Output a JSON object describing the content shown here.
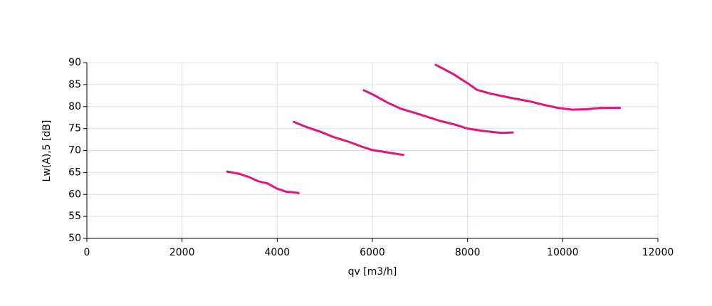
{
  "chart_data": {
    "type": "line",
    "x_label": "qv [m3/h]",
    "y_label": "Lw(A),5 [dB]",
    "xlim": [
      0,
      12000
    ],
    "xticks": [
      0,
      2000,
      4000,
      6000,
      8000,
      10000,
      12000
    ],
    "ylim": [
      50,
      90
    ],
    "yticks": [
      50,
      55,
      60,
      65,
      70,
      75,
      80,
      85,
      90
    ],
    "grid": true,
    "series": [
      {
        "color": "#e0157a",
        "x": [
          2950,
          3200,
          3400,
          3600,
          3800,
          4000,
          4200,
          4400,
          4450
        ],
        "values": [
          65.2,
          64.7,
          64.0,
          63.0,
          62.5,
          61.3,
          60.6,
          60.4,
          60.3
        ]
      },
      {
        "color": "#e0157a",
        "x": [
          4350,
          4600,
          4900,
          5200,
          5500,
          5800,
          6000,
          6300,
          6650
        ],
        "values": [
          76.5,
          75.4,
          74.3,
          73.0,
          72.0,
          70.8,
          70.1,
          69.6,
          69.0
        ]
      },
      {
        "color": "#e0157a",
        "x": [
          5820,
          6000,
          6300,
          6600,
          7000,
          7400,
          7700,
          8000,
          8300,
          8700,
          8950
        ],
        "values": [
          83.7,
          82.8,
          81.0,
          79.5,
          78.2,
          76.8,
          76.0,
          75.0,
          74.5,
          74.0,
          74.1
        ]
      },
      {
        "color": "#e0157a",
        "x": [
          7330,
          7700,
          8000,
          8200,
          8500,
          8900,
          9300,
          9600,
          9900,
          10200,
          10500,
          10800,
          11200
        ],
        "values": [
          89.5,
          87.4,
          85.3,
          83.8,
          82.9,
          82.0,
          81.2,
          80.4,
          79.7,
          79.3,
          79.4,
          79.7,
          79.7
        ]
      }
    ]
  }
}
